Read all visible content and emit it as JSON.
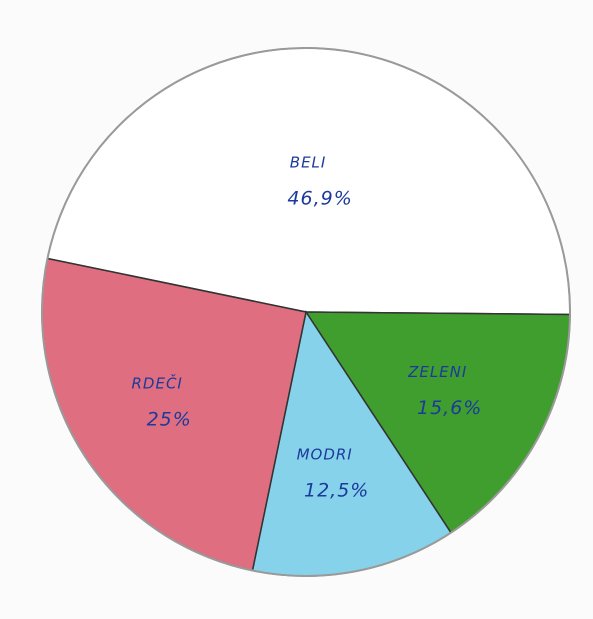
{
  "chart_data": {
    "type": "pie",
    "categories": [
      "BELI",
      "ZELENI",
      "MODRI",
      "RDEČI"
    ],
    "values": [
      46.9,
      15.6,
      12.5,
      25
    ],
    "value_labels": [
      "46,9%",
      "15,6%",
      "12,5%",
      "25%"
    ],
    "colors": [
      "#ffffff",
      "#3f9e2e",
      "#86d2ea",
      "#de6e80"
    ]
  }
}
